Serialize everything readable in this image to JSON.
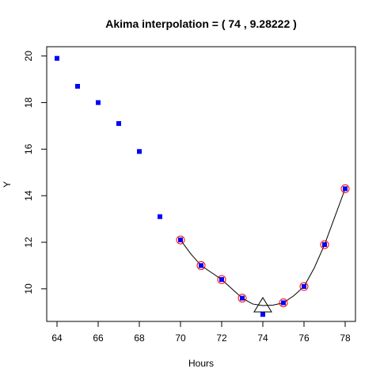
{
  "chart_data": {
    "type": "scatter",
    "title": "Akima interpolation = ( 74 , 9.28222 )",
    "xlabel": "Hours",
    "ylabel": "Y",
    "xlim": [
      63.5,
      78.5
    ],
    "ylim": [
      8.6,
      20.4
    ],
    "xticks": [
      64,
      66,
      68,
      70,
      72,
      74,
      76,
      78
    ],
    "yticks": [
      10,
      12,
      14,
      16,
      18,
      20
    ],
    "grid": false,
    "series": [
      {
        "marker": "square",
        "color": "#0000ff",
        "x": [
          64,
          65,
          66,
          67,
          68,
          69,
          70,
          71,
          72,
          73,
          74,
          75,
          76,
          77,
          78
        ],
        "y": [
          19.9,
          18.7,
          18.0,
          17.1,
          15.9,
          13.1,
          12.1,
          11.0,
          10.4,
          9.6,
          8.9,
          9.4,
          10.1,
          11.9,
          14.3
        ]
      },
      {
        "marker": "circle",
        "color": "#ff0000",
        "x": [
          70,
          71,
          72,
          73,
          75,
          76,
          77,
          78
        ],
        "y": [
          12.1,
          11.0,
          10.4,
          9.6,
          9.4,
          10.1,
          11.9,
          14.3
        ]
      },
      {
        "marker": "line",
        "color": "#000000",
        "x": [
          70,
          70.5,
          71,
          71.5,
          72,
          72.5,
          73,
          73.5,
          74,
          74.5,
          75,
          75.5,
          76,
          76.5,
          77,
          77.5,
          78
        ],
        "y": [
          12.1,
          11.5,
          11.0,
          10.7,
          10.4,
          10.0,
          9.6,
          9.35,
          9.28,
          9.3,
          9.4,
          9.7,
          10.1,
          10.9,
          11.9,
          13.1,
          14.3
        ]
      },
      {
        "marker": "triangle",
        "color": "#000000",
        "x": [
          74
        ],
        "y": [
          9.28222
        ]
      }
    ]
  }
}
